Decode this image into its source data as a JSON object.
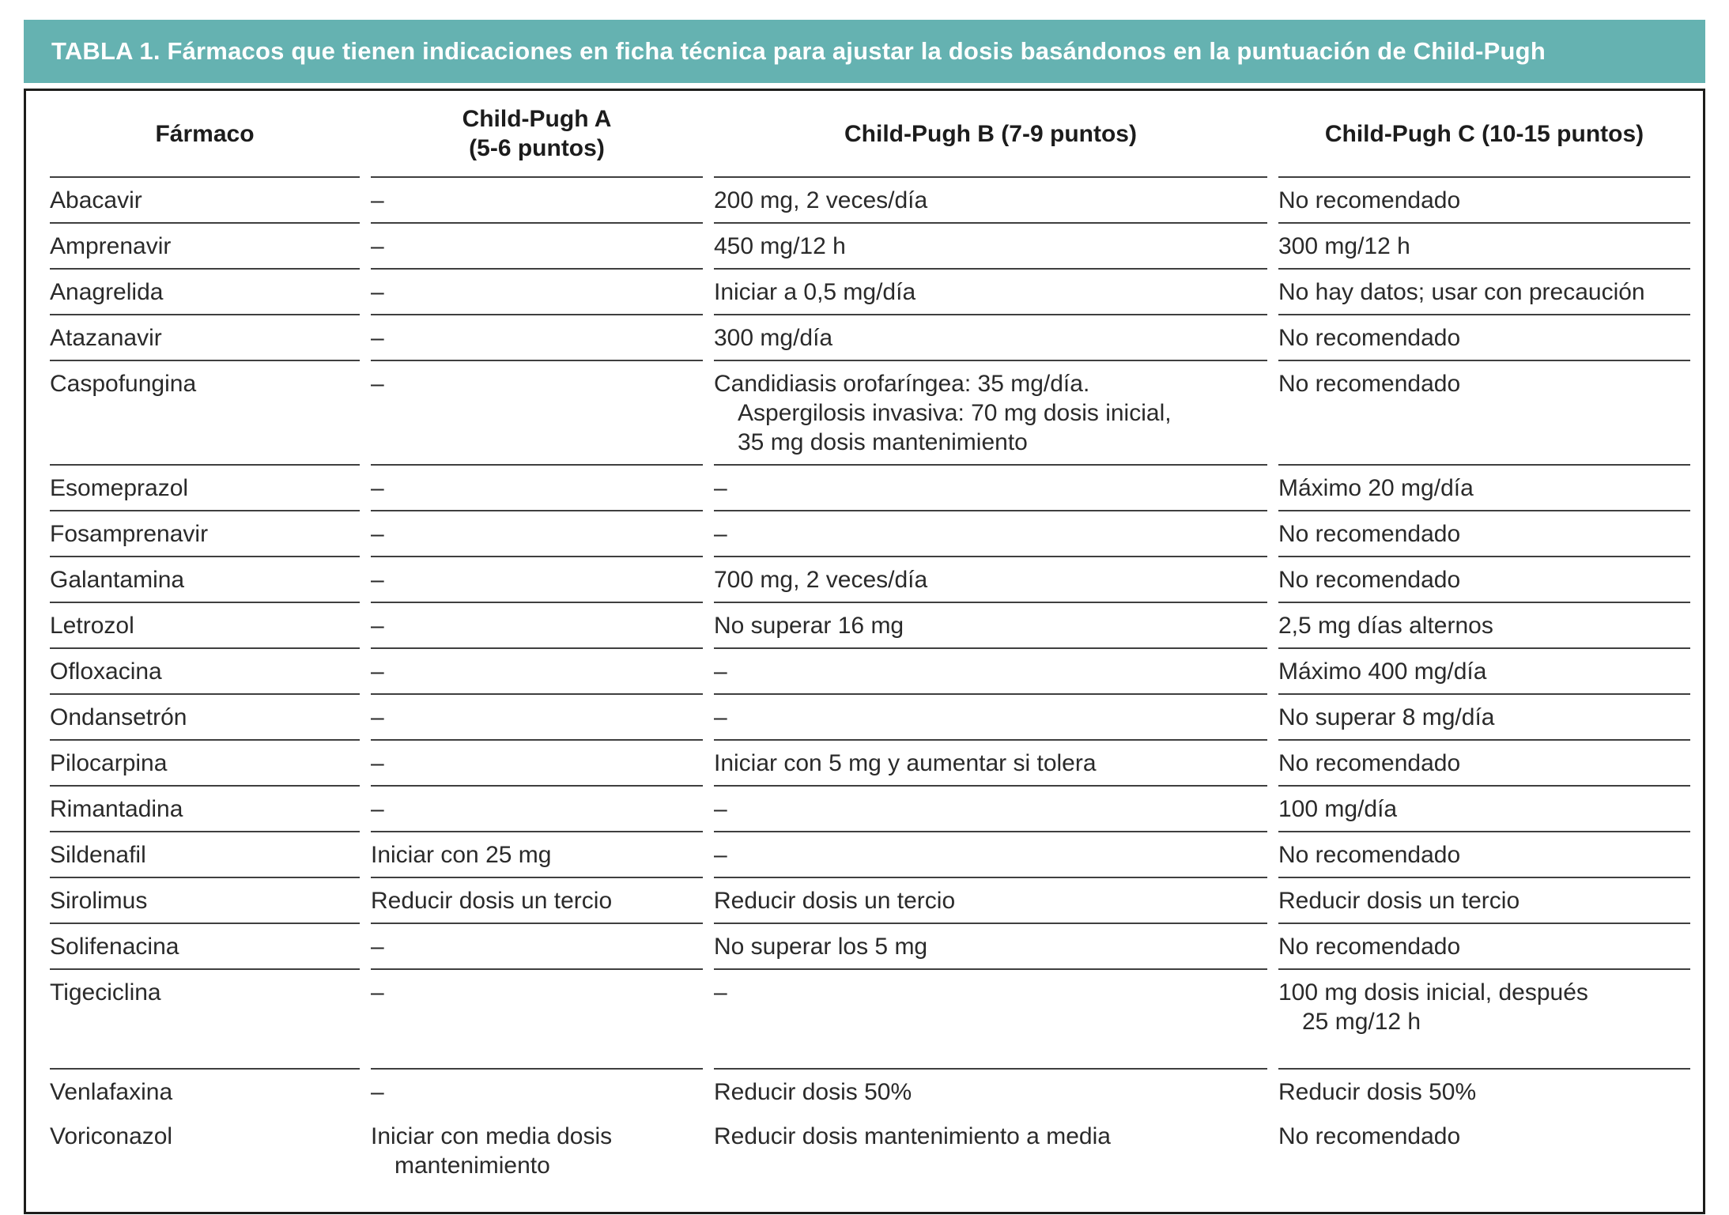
{
  "colors": {
    "title_bar_background": "#65b2b1",
    "title_text": "#ffffff",
    "frame_border": "#1d1d1b",
    "row_divider": "#3f3f3f",
    "body_text": "#2a2a2a"
  },
  "title_bar": {
    "label": "TABLA 1. Fármacos que tienen indicaciones en ficha técnica para ajustar la dosis basándonos en la puntuación de Child-Pugh"
  },
  "table": {
    "columns": [
      {
        "key": "farmaco",
        "label": "Fármaco"
      },
      {
        "key": "a",
        "label": "Child-Pugh A\n(5-6 puntos)"
      },
      {
        "key": "b",
        "label": "Child-Pugh B (7-9 puntos)"
      },
      {
        "key": "c",
        "label": "Child-Pugh C (10-15 puntos)"
      }
    ],
    "empty_marker": "–",
    "rows": [
      {
        "farmaco": "Abacavir",
        "a": "–",
        "b": "200 mg, 2 veces/día",
        "c": "No recomendado"
      },
      {
        "farmaco": "Amprenavir",
        "a": "–",
        "b": "450 mg/12 h",
        "c": "300 mg/12 h"
      },
      {
        "farmaco": "Anagrelida",
        "a": "–",
        "b": "Iniciar a 0,5 mg/día",
        "c": "No hay datos; usar con precaución"
      },
      {
        "farmaco": "Atazanavir",
        "a": "–",
        "b": "300 mg/día",
        "c": "No recomendado"
      },
      {
        "farmaco": "Caspofungina",
        "a": "–",
        "b": "Candidiasis orofaríngea: 35 mg/día.\nAspergilosis invasiva: 70 mg dosis inicial,\n35 mg dosis mantenimiento",
        "c": "No recomendado"
      },
      {
        "farmaco": "Esomeprazol",
        "a": "–",
        "b": "–",
        "c": "Máximo 20 mg/día"
      },
      {
        "farmaco": "Fosamprenavir",
        "a": "–",
        "b": "–",
        "c": "No recomendado"
      },
      {
        "farmaco": "Galantamina",
        "a": "–",
        "b": "700 mg, 2 veces/día",
        "c": "No recomendado"
      },
      {
        "farmaco": "Letrozol",
        "a": "–",
        "b": "No superar 16 mg",
        "c": "2,5 mg días alternos"
      },
      {
        "farmaco": "Ofloxacina",
        "a": "–",
        "b": "–",
        "c": "Máximo 400 mg/día"
      },
      {
        "farmaco": "Ondansetrón",
        "a": "–",
        "b": "–",
        "c": "No superar 8 mg/día"
      },
      {
        "farmaco": "Pilocarpina",
        "a": "–",
        "b": "Iniciar con 5 mg y aumentar si tolera",
        "c": "No recomendado"
      },
      {
        "farmaco": "Rimantadina",
        "a": "–",
        "b": "–",
        "c": "100 mg/día"
      },
      {
        "farmaco": "Sildenafil",
        "a": "Iniciar con 25 mg",
        "b": "–",
        "c": "No recomendado"
      },
      {
        "farmaco": "Sirolimus",
        "a": "Reducir dosis un tercio",
        "b": "Reducir dosis un tercio",
        "c": "Reducir dosis un tercio"
      },
      {
        "farmaco": "Solifenacina",
        "a": "–",
        "b": "No superar los 5 mg",
        "c": "No recomendado"
      },
      {
        "farmaco": "Tigeciclina",
        "a": "–",
        "b": "–",
        "c": "100 mg dosis inicial, después\n25 mg/12 h",
        "spacious": true
      },
      {
        "farmaco": "Venlafaxina",
        "a": "–",
        "b": "Reducir dosis 50%",
        "c": "Reducir dosis 50%",
        "divider": false
      },
      {
        "farmaco": "Voriconazol",
        "a": "Iniciar con media dosis\nmantenimiento",
        "b": "Reducir dosis mantenimiento a media",
        "c": "No recomendado",
        "spacious": true
      }
    ]
  }
}
